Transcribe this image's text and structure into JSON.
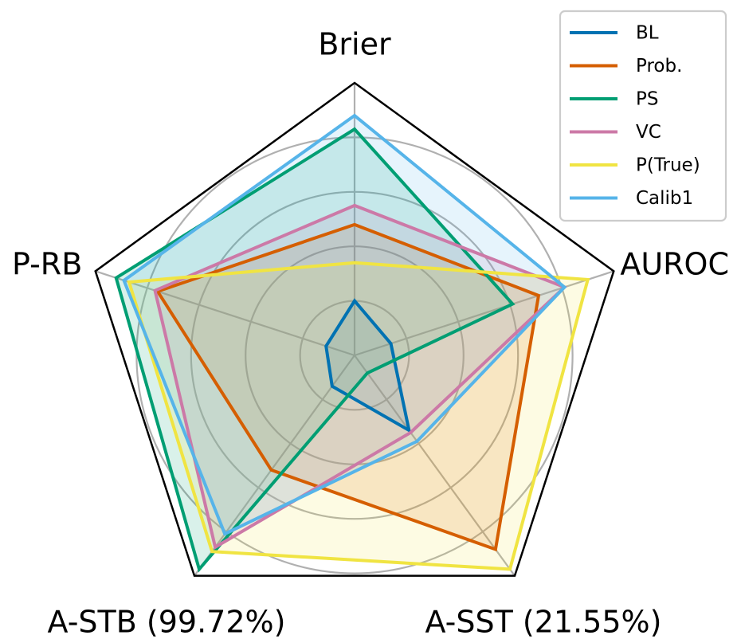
{
  "chart_data": {
    "type": "radar",
    "axes": [
      "Brier",
      "AUROC",
      "A-SST (21.55%)",
      "A-STB (99.72%)",
      "P-RB"
    ],
    "rlim": [
      0,
      1
    ],
    "grid": true,
    "legend_position": "top-right",
    "series": [
      {
        "name": "BL",
        "color": "#0072B2",
        "values": [
          0.2,
          0.14,
          0.34,
          0.14,
          0.11
        ]
      },
      {
        "name": "Prob.",
        "color": "#D55E00",
        "values": [
          0.48,
          0.71,
          0.88,
          0.52,
          0.76
        ]
      },
      {
        "name": "PS",
        "color": "#009E73",
        "values": [
          0.83,
          0.61,
          0.08,
          0.97,
          0.92
        ]
      },
      {
        "name": "VC",
        "color": "#CC79A7",
        "values": [
          0.55,
          0.81,
          0.35,
          0.87,
          0.77
        ]
      },
      {
        "name": "P(True)",
        "color": "#F0E442",
        "values": [
          0.34,
          0.9,
          0.97,
          0.89,
          0.87
        ]
      },
      {
        "name": "Calib1",
        "color": "#56B4E9",
        "values": [
          0.88,
          0.81,
          0.39,
          0.81,
          0.89
        ]
      }
    ]
  }
}
